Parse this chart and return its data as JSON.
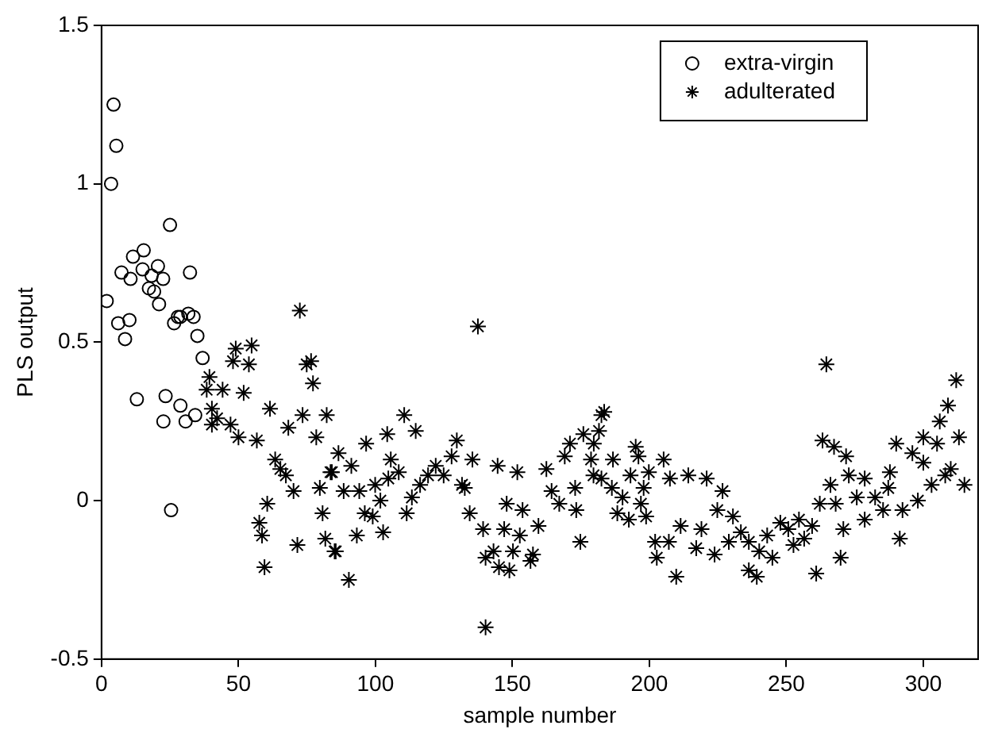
{
  "chart_data": {
    "type": "scatter",
    "xlabel": "sample number",
    "ylabel": "PLS output",
    "xlim": [
      0,
      320
    ],
    "xticks": [
      0,
      50,
      100,
      150,
      200,
      250,
      300
    ],
    "ylim": [
      -0.5,
      1.5
    ],
    "yticks": [
      -0.5,
      0,
      0.5,
      1,
      1.5
    ],
    "grid": false,
    "legend": "top right",
    "series": [
      {
        "name": "extra-virgin",
        "color": "#000000",
        "marker": "circle",
        "x": [
          4.4,
          5.4,
          3.5,
          25,
          15.4,
          11.5,
          7.3,
          10.6,
          15,
          20.6,
          18.3,
          22.5,
          32.3,
          17.3,
          19.2,
          21,
          1.9,
          6.1,
          10.2,
          8.6,
          26.5,
          28.8,
          33.6,
          35,
          36.9,
          12.9,
          23.4,
          28.8,
          22.6,
          30.7,
          34.2,
          25.4,
          31.7,
          27.9
        ],
        "values": [
          1.25,
          1.12,
          1.0,
          0.87,
          0.79,
          0.77,
          0.72,
          0.7,
          0.73,
          0.74,
          0.71,
          0.7,
          0.72,
          0.67,
          0.66,
          0.62,
          0.63,
          0.56,
          0.57,
          0.51,
          0.56,
          0.58,
          0.58,
          0.52,
          0.45,
          0.32,
          0.33,
          0.3,
          0.25,
          0.25,
          0.27,
          -0.03,
          0.59,
          0.58
        ]
      },
      {
        "name": "adulterated",
        "color": "#000000",
        "marker": "cross",
        "x": [
          72.4,
          49,
          54.8,
          48,
          53.8,
          76.5,
          74.9,
          77.2,
          39.4,
          38.4,
          44.2,
          51.9,
          40.3,
          42.2,
          40.3,
          47.1,
          61.5,
          73.4,
          82.2,
          50,
          56.7,
          68.2,
          78.4,
          63.4,
          65.3,
          67.3,
          70.1,
          84.1,
          79.7,
          60.5,
          57.6,
          58.6,
          80.7,
          71.5,
          81.7,
          85.1,
          59.5,
          137.4,
          110.5,
          104.3,
          114.7,
          96.6,
          86.5,
          83.6,
          91.2,
          88.4,
          94.1,
          99.9,
          105.6,
          108.5,
          104.7,
          101.8,
          96.1,
          99,
          93.2,
          102.8,
          85.5,
          90.3,
          111.4,
          113.3,
          116.3,
          119.2,
          122,
          124.9,
          127.8,
          129.7,
          131.6,
          135.4,
          132.6,
          134.4,
          139.3,
          140.2,
          143.1,
          140.2,
          144.6,
          151.8,
          147.9,
          147,
          145.1,
          148.9,
          150.2,
          153.7,
          152.7,
          156.6,
          157.5,
          159.5,
          162.4,
          164.3,
          167.1,
          169.1,
          171,
          172.9,
          173.3,
          174.8,
          175.9,
          178.7,
          179.6,
          182.5,
          181.6,
          264.6,
          183.5,
          179.7,
          186.7,
          195,
          196,
          205.2,
          182.5,
          186.3,
          190.2,
          193.1,
          199.8,
          197.9,
          188.3,
          192.5,
          198.8,
          196.9,
          207.5,
          214.2,
          220.9,
          226.7,
          211.4,
          202.1,
          202.7,
          207.1,
          209.8,
          217.1,
          219,
          223.8,
          224.8,
          229,
          230.5,
          233.4,
          236.3,
          236.3,
          239.2,
          240.1,
          243,
          244.9,
          247.8,
          250.7,
          252.6,
          254.6,
          256.5,
          259.4,
          260.9,
          262.2,
          263.2,
          266.1,
          267.4,
          268,
          271.8,
          270.8,
          269.8,
          272.8,
          275.7,
          278.6,
          278.6,
          282.4,
          285.3,
          287.2,
          290.1,
          287.8,
          291.4,
          292.4,
          296,
          298,
          300,
          300,
          303,
          305,
          306,
          308,
          309,
          310,
          312,
          313,
          315
        ],
        "values": [
          0.6,
          0.48,
          0.49,
          0.44,
          0.43,
          0.44,
          0.43,
          0.37,
          0.39,
          0.35,
          0.35,
          0.34,
          0.29,
          0.26,
          0.24,
          0.24,
          0.29,
          0.27,
          0.27,
          0.2,
          0.19,
          0.23,
          0.2,
          0.13,
          0.1,
          0.08,
          0.03,
          0.09,
          0.04,
          -0.01,
          -0.07,
          -0.11,
          -0.04,
          -0.14,
          -0.12,
          -0.16,
          -0.21,
          0.55,
          0.27,
          0.21,
          0.22,
          0.18,
          0.15,
          0.09,
          0.11,
          0.03,
          0.03,
          0.05,
          0.13,
          0.09,
          0.07,
          0.0,
          -0.04,
          -0.05,
          -0.11,
          -0.1,
          -0.16,
          -0.25,
          -0.04,
          0.01,
          0.05,
          0.08,
          0.11,
          0.08,
          0.14,
          0.19,
          0.05,
          0.13,
          0.04,
          -0.04,
          -0.09,
          -0.18,
          -0.16,
          -0.4,
          0.11,
          0.09,
          -0.01,
          -0.09,
          -0.21,
          -0.22,
          -0.16,
          -0.03,
          -0.11,
          -0.19,
          -0.17,
          -0.08,
          0.1,
          0.03,
          -0.01,
          0.14,
          0.18,
          0.04,
          -0.03,
          -0.13,
          0.21,
          0.13,
          0.08,
          0.27,
          0.22,
          0.43,
          0.28,
          0.18,
          0.13,
          0.17,
          0.14,
          0.13,
          0.07,
          0.04,
          0.01,
          0.08,
          0.09,
          0.04,
          -0.04,
          -0.06,
          -0.05,
          -0.01,
          0.07,
          0.08,
          0.07,
          0.03,
          -0.08,
          -0.13,
          -0.18,
          -0.13,
          -0.24,
          -0.15,
          -0.09,
          -0.17,
          -0.03,
          -0.13,
          -0.05,
          -0.1,
          -0.13,
          -0.22,
          -0.24,
          -0.16,
          -0.11,
          -0.18,
          -0.07,
          -0.09,
          -0.14,
          -0.06,
          -0.12,
          -0.08,
          -0.23,
          -0.01,
          0.19,
          0.05,
          0.17,
          -0.01,
          0.14,
          -0.09,
          -0.18,
          0.08,
          0.01,
          0.07,
          -0.06,
          0.01,
          -0.03,
          0.04,
          0.18,
          0.09,
          -0.12,
          -0.03,
          0.15,
          0.0,
          0.12,
          0.2,
          0.05,
          0.18,
          0.25,
          0.08,
          0.3,
          0.1,
          0.38,
          0.2,
          0.05
        ]
      }
    ]
  }
}
